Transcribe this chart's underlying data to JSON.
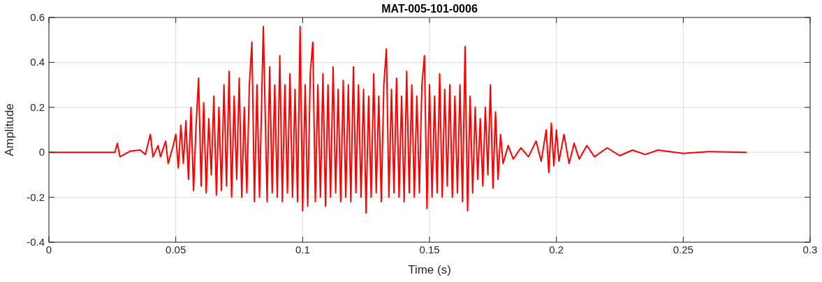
{
  "chart_data": {
    "type": "line",
    "title": "MAT-005-101-0006",
    "xlabel": "Time (s)",
    "ylabel": "Amplitude",
    "xlim": [
      0,
      0.3
    ],
    "xticks": [
      0,
      0.05,
      0.1,
      0.15,
      0.2,
      0.25,
      0.3
    ],
    "ylim": [
      -0.4,
      0.6
    ],
    "yticks": [
      -0.4,
      -0.2,
      0,
      0.2,
      0.4,
      0.6
    ],
    "grid": true,
    "line_style": "solid",
    "x": [
      0,
      0.02,
      0.026,
      0.027,
      0.028,
      0.032,
      0.036,
      0.038,
      0.04,
      0.041,
      0.043,
      0.044,
      0.046,
      0.047,
      0.049,
      0.05,
      0.051,
      0.052,
      0.053,
      0.054,
      0.055,
      0.056,
      0.057,
      0.058,
      0.059,
      0.06,
      0.061,
      0.062,
      0.063,
      0.064,
      0.065,
      0.066,
      0.067,
      0.068,
      0.069,
      0.07,
      0.071,
      0.072,
      0.073,
      0.074,
      0.075,
      0.076,
      0.077,
      0.078,
      0.079,
      0.08,
      0.081,
      0.082,
      0.083,
      0.0845,
      0.086,
      0.087,
      0.088,
      0.089,
      0.09,
      0.091,
      0.092,
      0.093,
      0.094,
      0.095,
      0.096,
      0.097,
      0.098,
      0.099,
      0.1,
      0.101,
      0.102,
      0.103,
      0.104,
      0.105,
      0.106,
      0.107,
      0.108,
      0.109,
      0.11,
      0.111,
      0.112,
      0.113,
      0.114,
      0.115,
      0.116,
      0.117,
      0.118,
      0.119,
      0.12,
      0.121,
      0.122,
      0.123,
      0.124,
      0.125,
      0.126,
      0.127,
      0.128,
      0.129,
      0.13,
      0.131,
      0.132,
      0.133,
      0.134,
      0.135,
      0.136,
      0.137,
      0.138,
      0.139,
      0.14,
      0.141,
      0.142,
      0.143,
      0.144,
      0.145,
      0.146,
      0.147,
      0.148,
      0.149,
      0.15,
      0.151,
      0.152,
      0.153,
      0.154,
      0.155,
      0.156,
      0.157,
      0.158,
      0.159,
      0.16,
      0.161,
      0.162,
      0.163,
      0.164,
      0.165,
      0.166,
      0.167,
      0.168,
      0.169,
      0.17,
      0.171,
      0.172,
      0.173,
      0.174,
      0.175,
      0.176,
      0.177,
      0.178,
      0.179,
      0.181,
      0.183,
      0.186,
      0.189,
      0.192,
      0.194,
      0.196,
      0.197,
      0.198,
      0.199,
      0.2,
      0.201,
      0.203,
      0.205,
      0.207,
      0.209,
      0.212,
      0.215,
      0.22,
      0.225,
      0.23,
      0.235,
      0.24,
      0.25,
      0.26,
      0.275
    ],
    "series": [
      {
        "color": "#ff0000",
        "values": [
          0,
          0,
          0,
          0.04,
          -0.02,
          0.005,
          0.01,
          -0.01,
          0.08,
          -0.02,
          0.03,
          -0.02,
          0.05,
          -0.05,
          0.03,
          0.08,
          -0.07,
          0.12,
          -0.05,
          0.14,
          -0.12,
          0.2,
          -0.17,
          0.12,
          0.33,
          -0.15,
          0.22,
          -0.18,
          0.15,
          -0.1,
          0.25,
          -0.19,
          0.2,
          -0.17,
          0.3,
          -0.15,
          0.36,
          -0.2,
          0.25,
          -0.12,
          0.33,
          -0.2,
          0.2,
          -0.18,
          0.3,
          0.49,
          -0.22,
          0.3,
          -0.2,
          0.56,
          -0.22,
          0.38,
          -0.18,
          0.3,
          -0.2,
          0.43,
          -0.22,
          0.3,
          -0.18,
          0.35,
          -0.2,
          0.28,
          -0.22,
          0.56,
          -0.26,
          0.3,
          -0.24,
          0.35,
          0.49,
          -0.22,
          0.3,
          -0.2,
          0.35,
          -0.24,
          0.3,
          -0.2,
          0.38,
          -0.18,
          0.28,
          -0.22,
          0.32,
          -0.2,
          0.3,
          -0.22,
          0.38,
          -0.18,
          0.3,
          -0.2,
          0.28,
          -0.27,
          0.25,
          -0.2,
          0.35,
          -0.18,
          0.25,
          -0.22,
          0.3,
          0.46,
          -0.2,
          0.28,
          -0.18,
          0.33,
          -0.2,
          0.25,
          -0.22,
          0.36,
          -0.18,
          0.3,
          -0.2,
          0.25,
          -0.18,
          0.3,
          0.43,
          -0.25,
          0.3,
          -0.2,
          0.25,
          -0.18,
          0.35,
          -0.2,
          0.28,
          -0.15,
          0.3,
          -0.2,
          0.25,
          -0.18,
          0.3,
          -0.22,
          0.47,
          -0.26,
          0.25,
          -0.18,
          0.2,
          -0.12,
          0.15,
          -0.15,
          0.2,
          -0.1,
          0.3,
          -0.16,
          0.18,
          -0.12,
          0.08,
          -0.05,
          0.03,
          -0.03,
          0.02,
          -0.02,
          0.05,
          -0.04,
          0.1,
          -0.09,
          0.13,
          -0.06,
          0.1,
          -0.04,
          0.08,
          -0.05,
          0.04,
          -0.03,
          0.03,
          -0.02,
          0.02,
          -0.015,
          0.01,
          -0.01,
          0.01,
          -0.005,
          0.003,
          0
        ]
      }
    ]
  }
}
